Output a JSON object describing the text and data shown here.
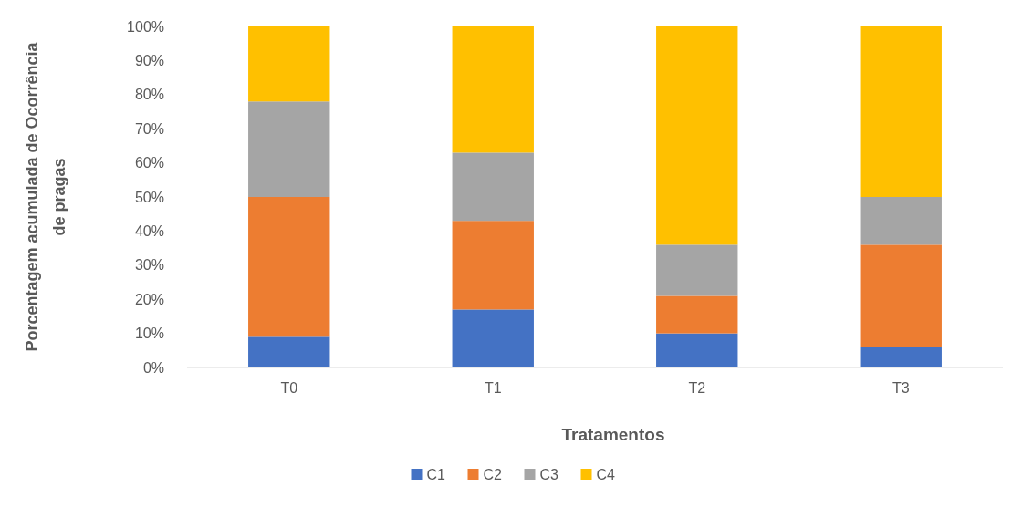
{
  "chart_data": {
    "type": "bar",
    "stacked": true,
    "xlabel": "Tratamentos",
    "ylabel": "Porcentagem acumulada de Ocorrência de pragas",
    "categories": [
      "T0",
      "T1",
      "T2",
      "T3"
    ],
    "series": [
      {
        "name": "C1",
        "color": "#4472c4",
        "values": [
          9,
          17,
          10,
          6
        ]
      },
      {
        "name": "C2",
        "color": "#ed7d31",
        "values": [
          41,
          26,
          11,
          30
        ]
      },
      {
        "name": "C3",
        "color": "#a5a5a5",
        "values": [
          28,
          20,
          15,
          14
        ]
      },
      {
        "name": "C4",
        "color": "#ffc000",
        "values": [
          22,
          37,
          64,
          50
        ]
      }
    ],
    "ylim": [
      0,
      100
    ],
    "yticks": [
      {
        "value": 0,
        "label": "0%"
      },
      {
        "value": 10,
        "label": "10%"
      },
      {
        "value": 20,
        "label": "20%"
      },
      {
        "value": 30,
        "label": "30%"
      },
      {
        "value": 40,
        "label": "40%"
      },
      {
        "value": 50,
        "label": "50%"
      },
      {
        "value": 60,
        "label": "60%"
      },
      {
        "value": 70,
        "label": "70%"
      },
      {
        "value": 80,
        "label": "80%"
      },
      {
        "value": 90,
        "label": "90%"
      },
      {
        "value": 100,
        "label": "100%"
      }
    ],
    "legend": "bottom"
  }
}
